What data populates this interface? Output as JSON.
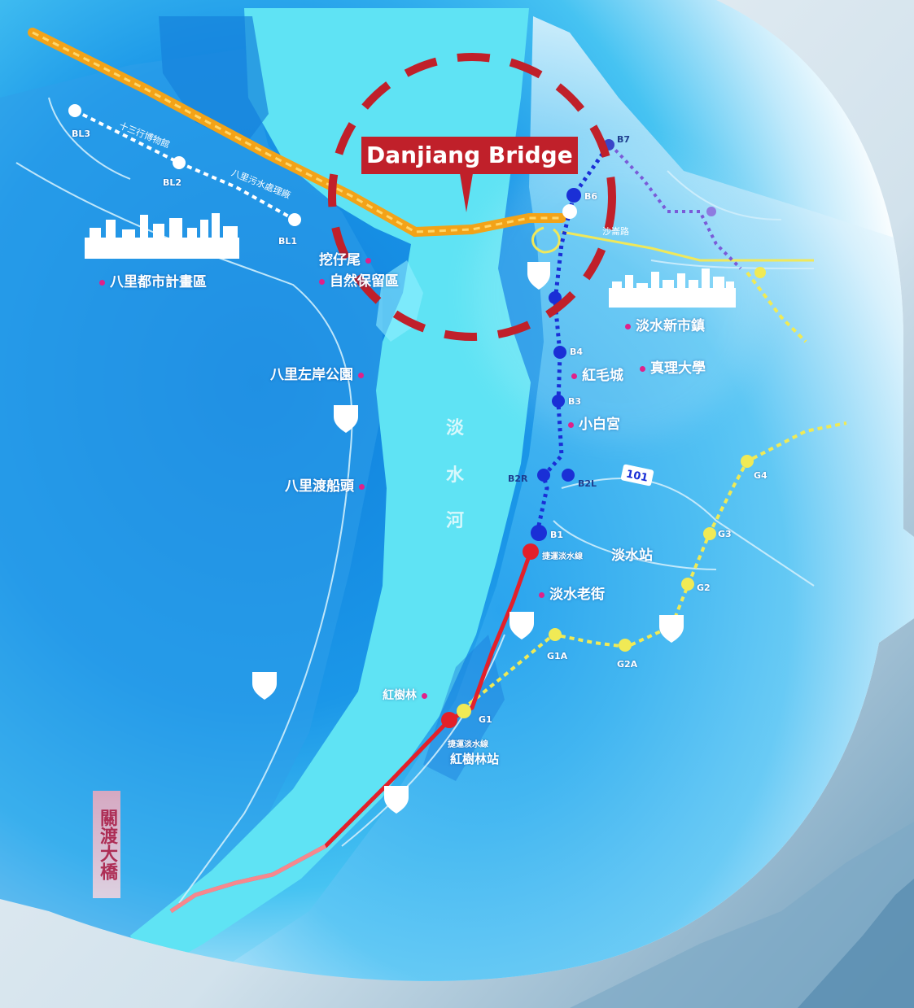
{
  "map": {
    "callout": "Danjiang Bridge",
    "river_name": [
      "淡",
      "水",
      "河"
    ],
    "vertical_sign": "關渡大橋",
    "places": [
      {
        "key": "bali_urban",
        "text": "八里都市計畫區"
      },
      {
        "key": "wazihwei",
        "text_lines": [
          "挖仔尾",
          "自然保留區"
        ]
      },
      {
        "key": "bali_left_bank_park",
        "text": "八里左岸公園"
      },
      {
        "key": "bali_ferry",
        "text": "八里渡船頭"
      },
      {
        "key": "tamsui_new_town",
        "text": "淡水新市鎮"
      },
      {
        "key": "fort_santo_domingo",
        "text": "紅毛城"
      },
      {
        "key": "aletheia_univ",
        "text": "真理大學"
      },
      {
        "key": "little_white_house",
        "text": "小白宮"
      },
      {
        "key": "tamsui_old_street",
        "text": "淡水老街"
      },
      {
        "key": "mangrove",
        "text": "紅樹林"
      },
      {
        "key": "shalun",
        "text": "沙崙路"
      },
      {
        "key": "shihsanhang",
        "text": "十三行博物館"
      },
      {
        "key": "bali_sewage",
        "text": "八里污水處理廠"
      }
    ],
    "mrt": {
      "tamsui_station": {
        "line": "捷運淡水線",
        "name": "淡水站"
      },
      "hongshulin_station": {
        "line": "捷運淡水線",
        "name": "紅樹林站"
      }
    },
    "station_codes": {
      "blue": [
        "B1",
        "B2L",
        "B2R",
        "B3",
        "B4",
        "B6",
        "B7"
      ],
      "white": [
        "BL1",
        "BL2",
        "BL3"
      ],
      "yellow": [
        "G1",
        "G1A",
        "G2A",
        "G2",
        "G3",
        "G4"
      ]
    },
    "road_sign": "101",
    "colors": {
      "sea_deep": "#1d8fe3",
      "sea_mid": "#27b6ef",
      "river": "#5fe3f4",
      "callout_red": "#c0202a",
      "blue_line": "#1a2fd6",
      "mrt_red": "#e3202a",
      "light_rail_yellow": "#f0ea55",
      "highway_orange": "#f3a318",
      "poi_pin": "#e0218a"
    }
  }
}
